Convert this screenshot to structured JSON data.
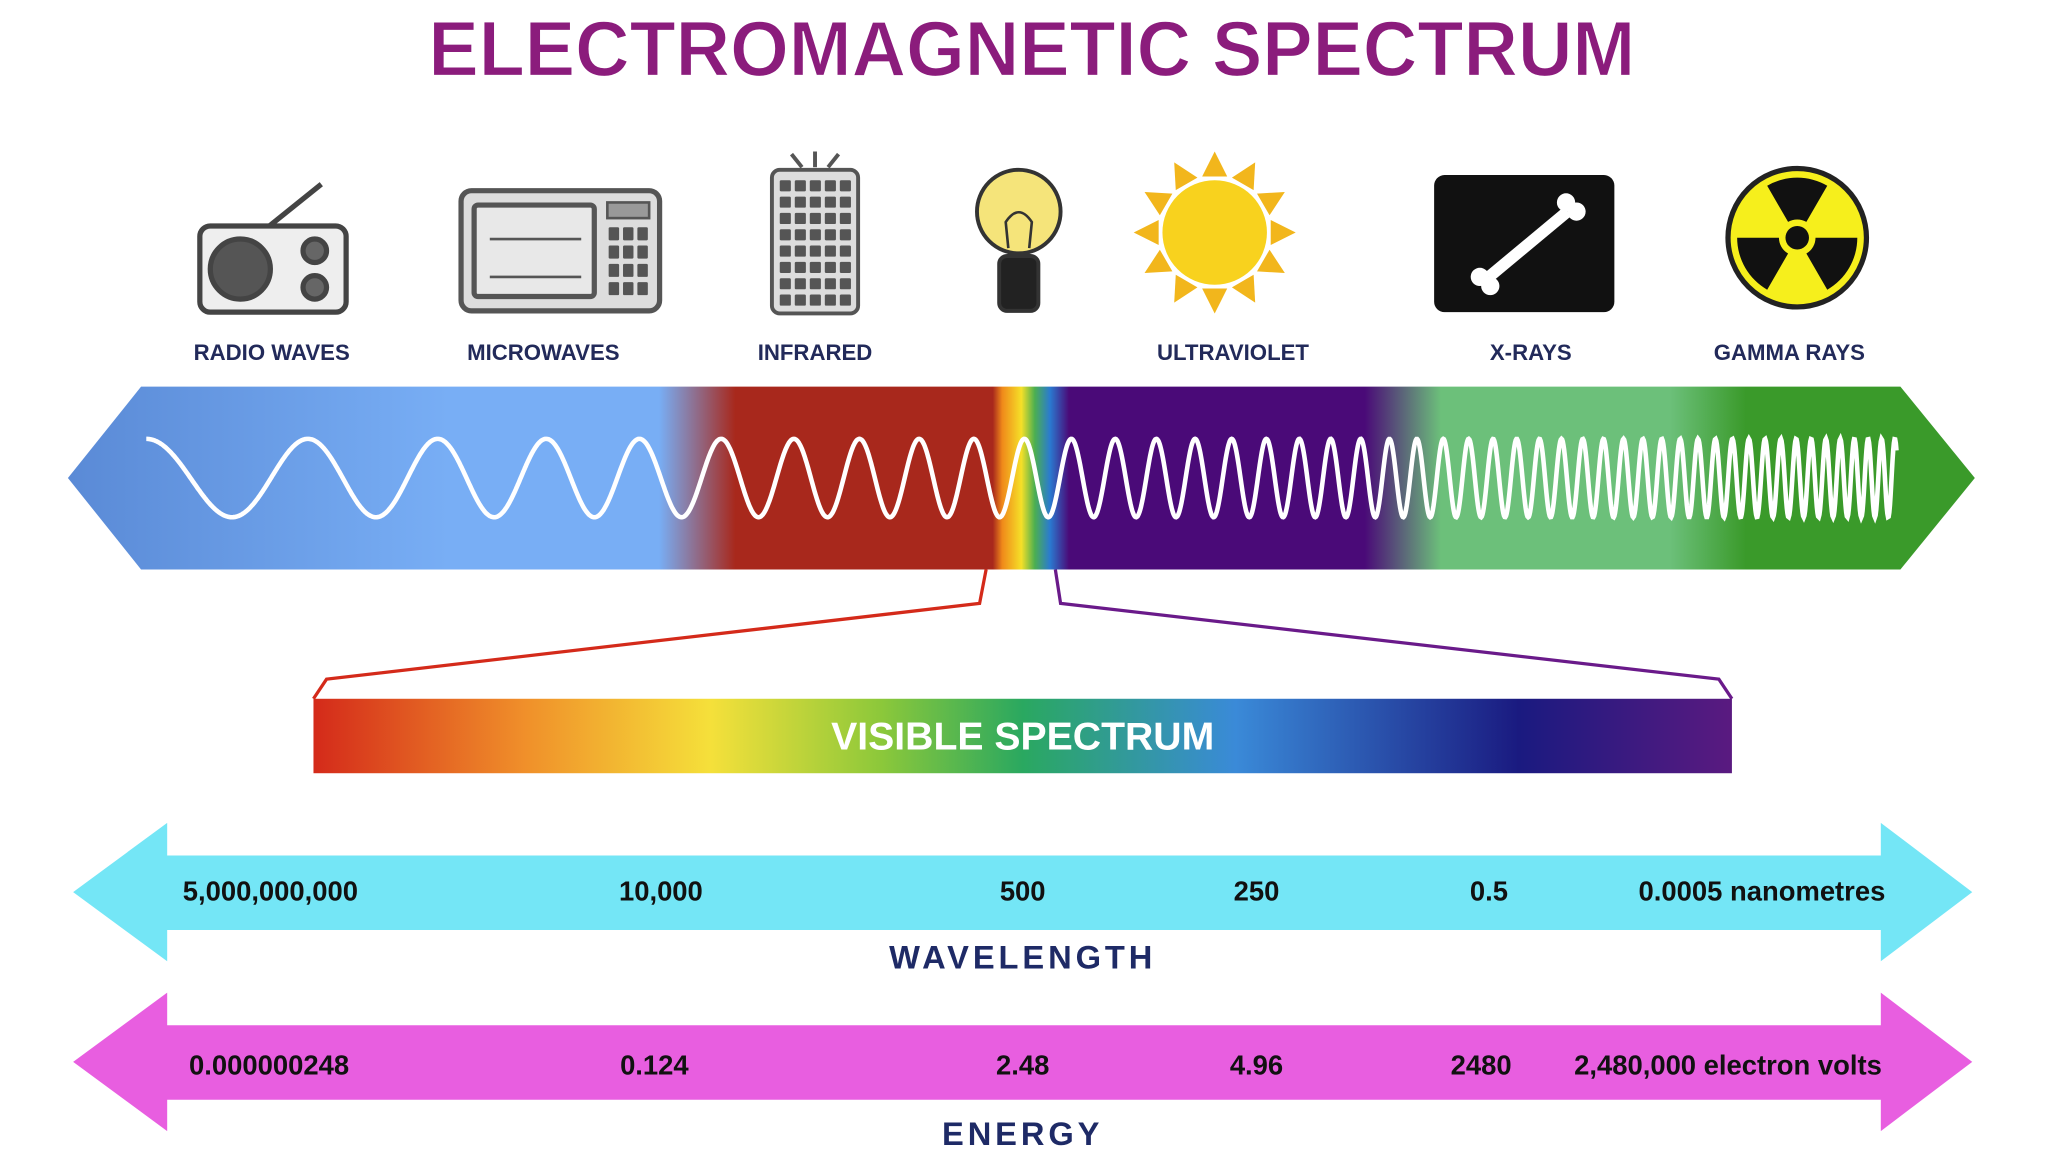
{
  "title": "ELECTROMAGNETIC SPECTRUM",
  "sources": [
    {
      "label": "RADIO WAVES"
    },
    {
      "label": "MICROWAVES"
    },
    {
      "label": "INFRARED"
    },
    {
      "label": "ULTRAVIOLET"
    },
    {
      "label": "X-RAYS"
    },
    {
      "label": "GAMMA RAYS"
    }
  ],
  "visible_spectrum": {
    "label": "VISIBLE SPECTRUM"
  },
  "wavelength": {
    "title": "WAVELENGTH",
    "labels": [
      "5,000,000,000",
      "10,000",
      "500",
      "250",
      "0.5",
      "0.0005 nanometres"
    ]
  },
  "energy": {
    "title": "ENERGY",
    "labels": [
      "0.000000248",
      "0.124",
      "2.48",
      "4.96",
      "2480",
      "2,480,000 electron volts"
    ]
  }
}
